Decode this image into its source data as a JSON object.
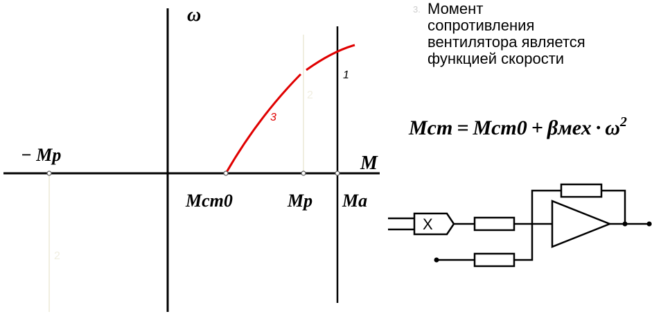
{
  "graph": {
    "y_axis_label": "ω",
    "x_axis_label": "M",
    "neg_mp_label": "− Mр",
    "mst0_label": "Mст0",
    "mp_label": "Mр",
    "ma_label": "Mа",
    "curve_labels": [
      "1",
      "2",
      "3"
    ],
    "faint_label": "2"
  },
  "text": {
    "number": "3.",
    "lines": [
      "Момент",
      "сопротивления",
      "вентилятора является",
      "функцией скорости"
    ]
  },
  "formula": {
    "lhs": "Mст",
    "eq": "=",
    "term1": "Mст0",
    "plus": "+",
    "beta": "βмех",
    "dot": "·",
    "omega": "ω",
    "power": "2"
  },
  "circuit": {
    "multiplier": "X"
  }
}
